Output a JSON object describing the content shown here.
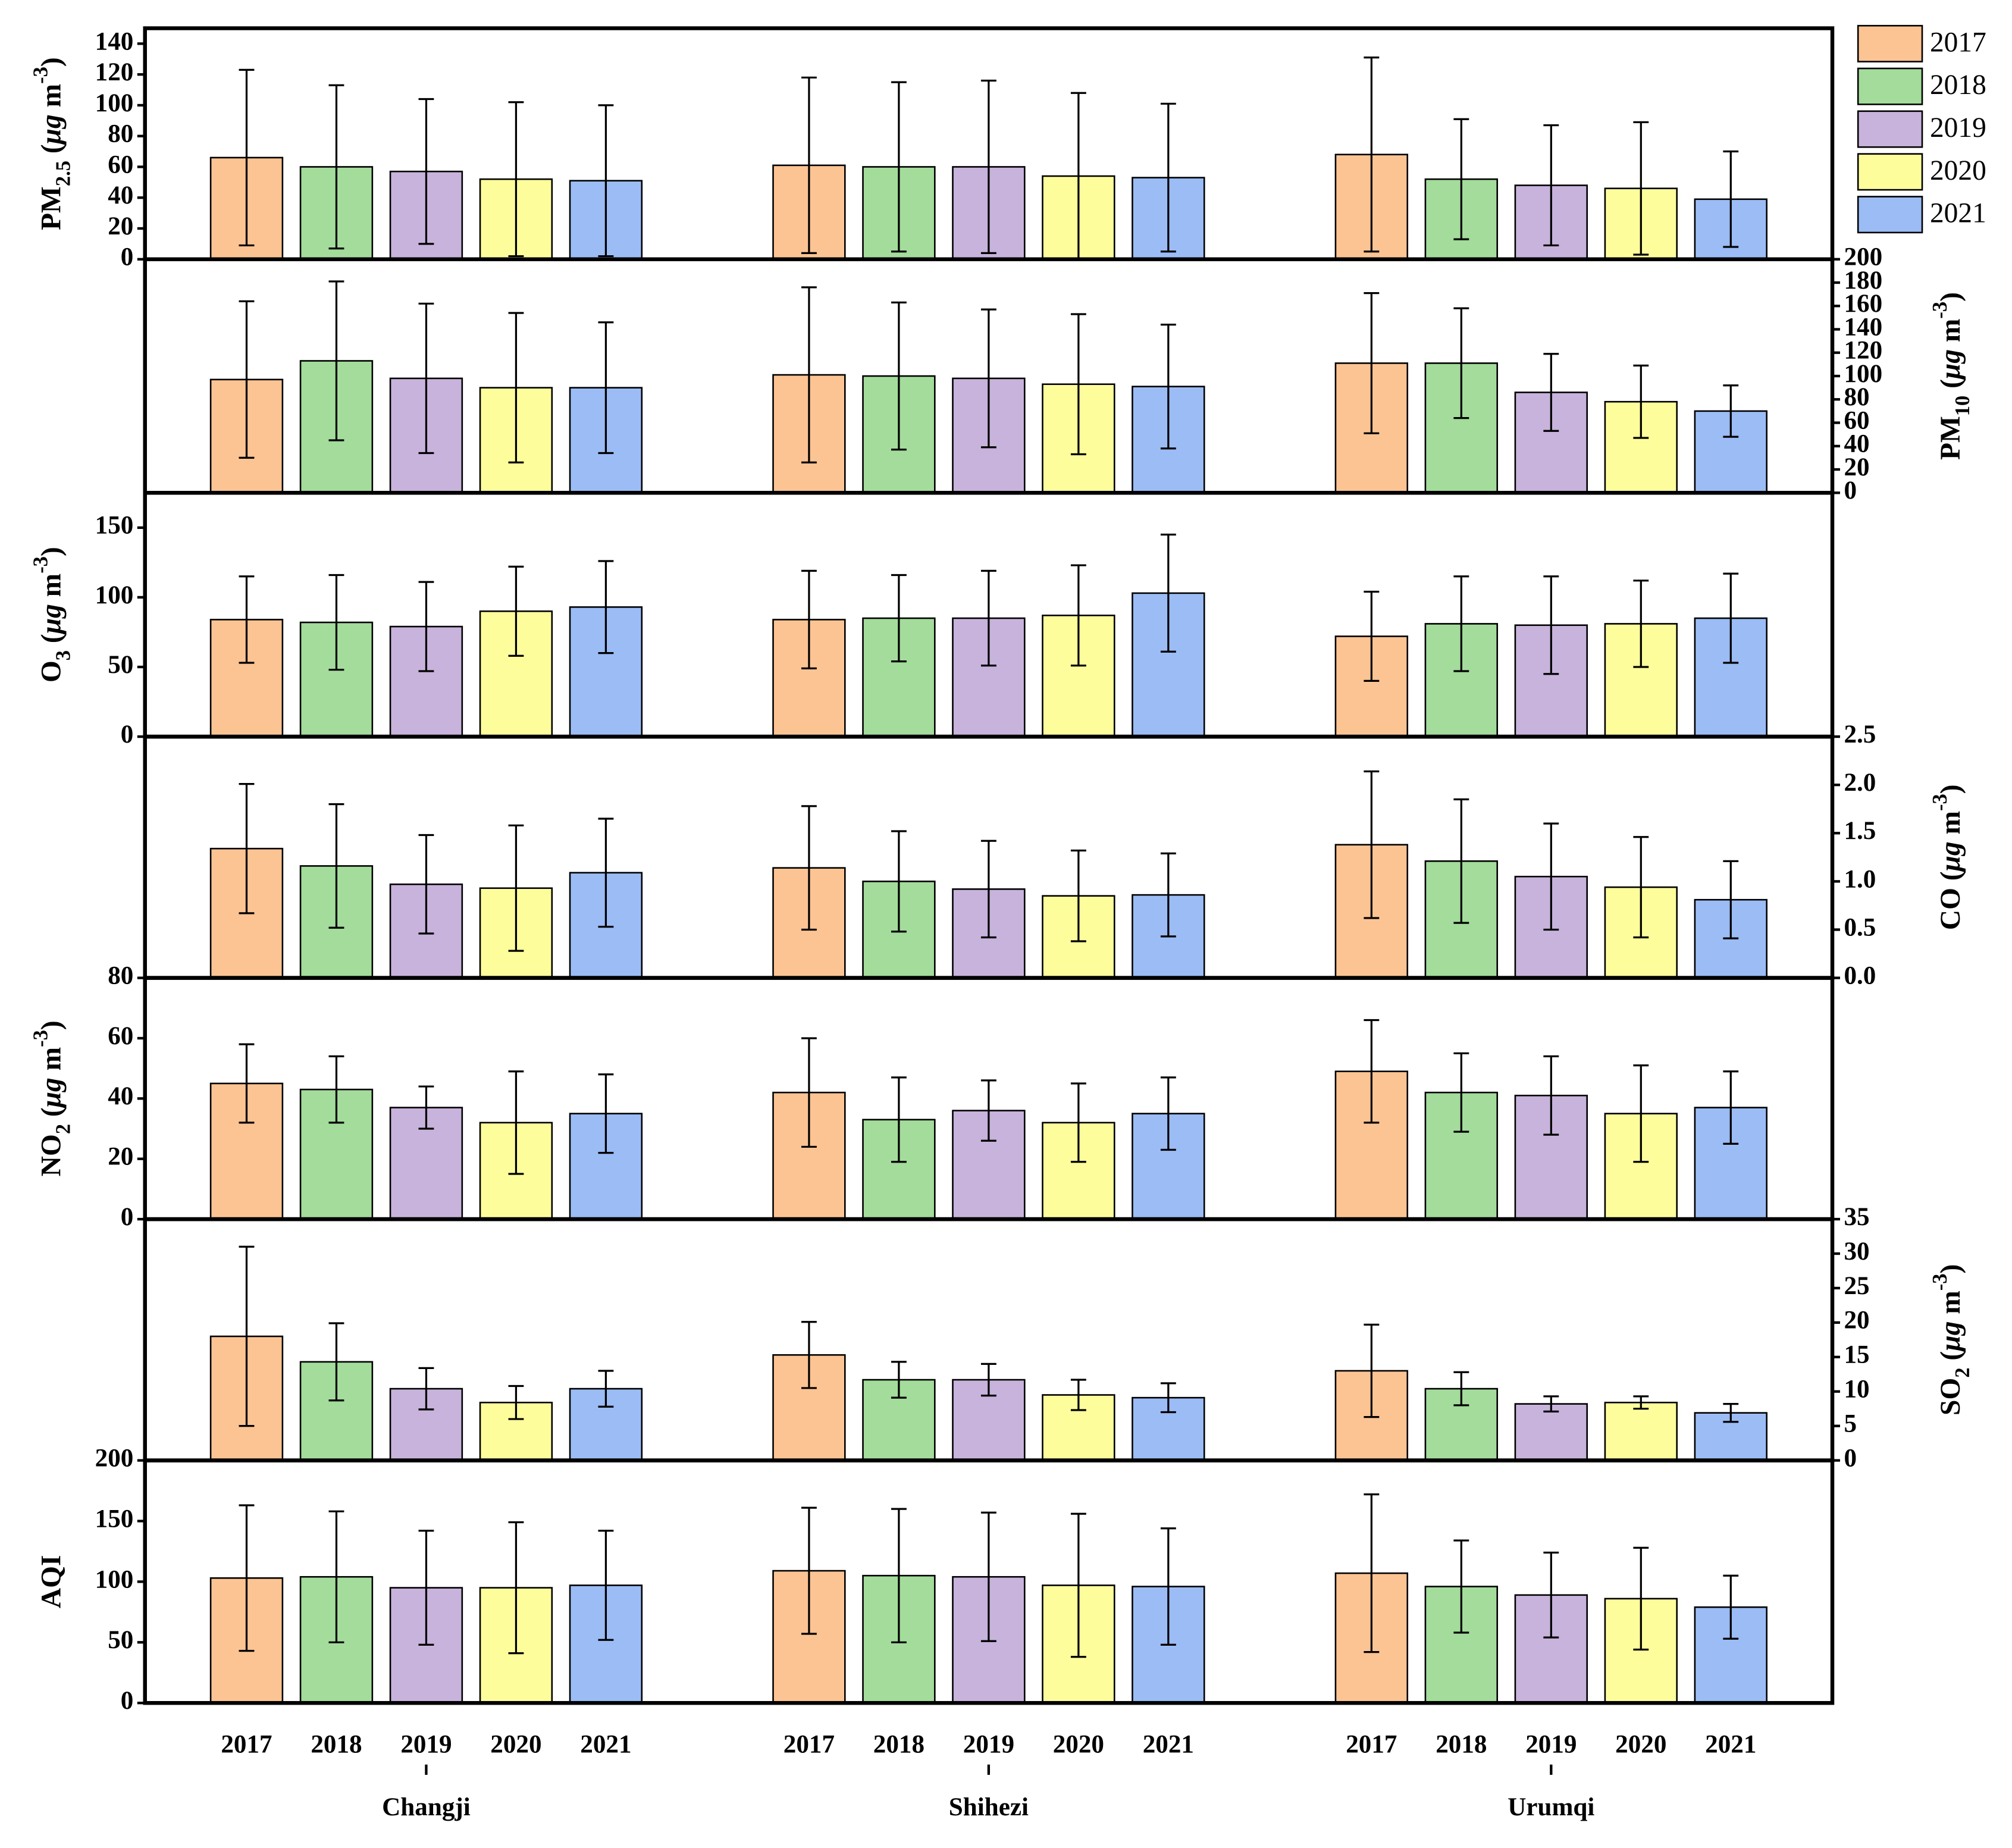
{
  "chart_data": {
    "type": "bar",
    "categories": [
      "Changji",
      "Shihezi",
      "Urumqi"
    ],
    "series": [
      {
        "name": "2017",
        "color": "#fcc493"
      },
      {
        "name": "2018",
        "color": "#a3dc9b"
      },
      {
        "name": "2019",
        "color": "#c8b3dc"
      },
      {
        "name": "2020",
        "color": "#fdfd9c"
      },
      {
        "name": "2021",
        "color": "#9bbcf5"
      }
    ],
    "panels": [
      {
        "ylabel": [
          {
            "text": "PM"
          },
          {
            "text": "2.5",
            "shift": "sub"
          },
          {
            "text": " ("
          },
          {
            "text": "μg",
            "style": "italic"
          },
          {
            "text": " m"
          },
          {
            "text": "-3",
            "shift": "super"
          },
          {
            "text": ")"
          }
        ],
        "axis_side": "left",
        "ylim": [
          0,
          150
        ],
        "yticks": [
          0,
          20,
          40,
          60,
          80,
          100,
          120,
          140
        ],
        "series": [
          {
            "values": [
              66,
              61,
              68
            ],
            "errors": [
              57,
              57,
              63
            ]
          },
          {
            "values": [
              60,
              60,
              52
            ],
            "errors": [
              53,
              55,
              39
            ]
          },
          {
            "values": [
              57,
              60,
              48
            ],
            "errors": [
              47,
              56,
              39
            ]
          },
          {
            "values": [
              52,
              54,
              46
            ],
            "errors": [
              50,
              54,
              43
            ]
          },
          {
            "values": [
              51,
              53,
              39
            ],
            "errors": [
              49,
              48,
              31
            ]
          }
        ]
      },
      {
        "ylabel": [
          {
            "text": "PM"
          },
          {
            "text": "10",
            "shift": "sub"
          },
          {
            "text": " ("
          },
          {
            "text": "μg",
            "style": "italic"
          },
          {
            "text": " m"
          },
          {
            "text": "-3",
            "shift": "super"
          },
          {
            "text": ")"
          }
        ],
        "axis_side": "right",
        "ylim": [
          0,
          200
        ],
        "yticks": [
          0,
          20,
          40,
          60,
          80,
          100,
          120,
          140,
          160,
          180,
          200
        ],
        "series": [
          {
            "values": [
              97,
              101,
              111
            ],
            "errors": [
              67,
              75,
              60
            ]
          },
          {
            "values": [
              113,
              100,
              111
            ],
            "errors": [
              68,
              63,
              47
            ]
          },
          {
            "values": [
              98,
              98,
              86
            ],
            "errors": [
              64,
              59,
              33
            ]
          },
          {
            "values": [
              90,
              93,
              78
            ],
            "errors": [
              64,
              60,
              31
            ]
          },
          {
            "values": [
              90,
              91,
              70
            ],
            "errors": [
              56,
              53,
              22
            ]
          }
        ]
      },
      {
        "ylabel": [
          {
            "text": "O"
          },
          {
            "text": "3",
            "shift": "sub"
          },
          {
            "text": " ("
          },
          {
            "text": "μg",
            "style": "italic"
          },
          {
            "text": " m"
          },
          {
            "text": "-3",
            "shift": "super"
          },
          {
            "text": ")"
          }
        ],
        "axis_side": "left",
        "ylim": [
          0,
          175
        ],
        "yticks": [
          0,
          50,
          100,
          150
        ],
        "series": [
          {
            "values": [
              84,
              84,
              72
            ],
            "errors": [
              31,
              35,
              32
            ]
          },
          {
            "values": [
              82,
              85,
              81
            ],
            "errors": [
              34,
              31,
              34
            ]
          },
          {
            "values": [
              79,
              85,
              80
            ],
            "errors": [
              32,
              34,
              35
            ]
          },
          {
            "values": [
              90,
              87,
              81
            ],
            "errors": [
              32,
              36,
              31
            ]
          },
          {
            "values": [
              93,
              103,
              85
            ],
            "errors": [
              33,
              42,
              32
            ]
          }
        ]
      },
      {
        "ylabel": [
          {
            "text": "CO ("
          },
          {
            "text": "μg",
            "style": "italic"
          },
          {
            "text": " m"
          },
          {
            "text": "-3",
            "shift": "super"
          },
          {
            "text": ")"
          }
        ],
        "axis_side": "right",
        "ylim": [
          0,
          2.5
        ],
        "yticks": [
          {
            "value": 0,
            "label": "0.0"
          },
          0.5,
          {
            "value": 1,
            "label": "1.0"
          },
          1.5,
          {
            "value": 2,
            "label": "2.0"
          },
          2.5
        ],
        "series": [
          {
            "values": [
              1.34,
              1.14,
              1.38
            ],
            "errors": [
              0.67,
              0.64,
              0.76
            ]
          },
          {
            "values": [
              1.16,
              1.0,
              1.21
            ],
            "errors": [
              0.64,
              0.52,
              0.64
            ]
          },
          {
            "values": [
              0.97,
              0.92,
              1.05
            ],
            "errors": [
              0.51,
              0.5,
              0.55
            ]
          },
          {
            "values": [
              0.93,
              0.85,
              0.94
            ],
            "errors": [
              0.65,
              0.47,
              0.52
            ]
          },
          {
            "values": [
              1.09,
              0.86,
              0.81
            ],
            "errors": [
              0.56,
              0.43,
              0.4
            ]
          }
        ]
      },
      {
        "ylabel": [
          {
            "text": "NO"
          },
          {
            "text": "2",
            "shift": "sub"
          },
          {
            "text": " ("
          },
          {
            "text": "μg",
            "style": "italic"
          },
          {
            "text": " m"
          },
          {
            "text": "-3",
            "shift": "super"
          },
          {
            "text": ")"
          }
        ],
        "axis_side": "left",
        "ylim": [
          0,
          80
        ],
        "yticks": [
          0,
          20,
          40,
          60,
          80
        ],
        "series": [
          {
            "values": [
              45,
              42,
              49
            ],
            "errors": [
              13,
              18,
              17
            ]
          },
          {
            "values": [
              43,
              33,
              42
            ],
            "errors": [
              11,
              14,
              13
            ]
          },
          {
            "values": [
              37,
              36,
              41
            ],
            "errors": [
              7,
              10,
              13
            ]
          },
          {
            "values": [
              32,
              32,
              35
            ],
            "errors": [
              17,
              13,
              16
            ]
          },
          {
            "values": [
              35,
              35,
              37
            ],
            "errors": [
              13,
              12,
              12
            ]
          }
        ]
      },
      {
        "ylabel": [
          {
            "text": "SO"
          },
          {
            "text": "2",
            "shift": "sub"
          },
          {
            "text": " ("
          },
          {
            "text": "μg",
            "style": "italic"
          },
          {
            "text": " m"
          },
          {
            "text": "-3",
            "shift": "super"
          },
          {
            "text": ")"
          }
        ],
        "axis_side": "right",
        "ylim": [
          0,
          35
        ],
        "yticks": [
          0,
          5,
          10,
          15,
          20,
          25,
          30,
          35
        ],
        "series": [
          {
            "values": [
              18,
              15.3,
              13
            ],
            "errors": [
              13,
              4.8,
              6.7
            ]
          },
          {
            "values": [
              14.3,
              11.7,
              10.4
            ],
            "errors": [
              5.6,
              2.6,
              2.4
            ]
          },
          {
            "values": [
              10.4,
              11.7,
              8.2
            ],
            "errors": [
              3,
              2.3,
              1.1
            ]
          },
          {
            "values": [
              8.4,
              9.5,
              8.4
            ],
            "errors": [
              2.4,
              2.2,
              0.9
            ]
          },
          {
            "values": [
              10.4,
              9.1,
              6.9
            ],
            "errors": [
              2.6,
              2.1,
              1.3
            ]
          }
        ]
      },
      {
        "ylabel": [
          {
            "text": "AQI"
          }
        ],
        "axis_side": "left",
        "ylim": [
          0,
          200
        ],
        "yticks": [
          0,
          50,
          100,
          150,
          200
        ],
        "series": [
          {
            "values": [
              103,
              109,
              107
            ],
            "errors": [
              60,
              52,
              65
            ]
          },
          {
            "values": [
              104,
              105,
              96
            ],
            "errors": [
              54,
              55,
              38
            ]
          },
          {
            "values": [
              95,
              104,
              89
            ],
            "errors": [
              47,
              53,
              35
            ]
          },
          {
            "values": [
              95,
              97,
              86
            ],
            "errors": [
              54,
              59,
              42
            ]
          },
          {
            "values": [
              97,
              96,
              79
            ],
            "errors": [
              45,
              48,
              26
            ]
          }
        ]
      }
    ]
  }
}
